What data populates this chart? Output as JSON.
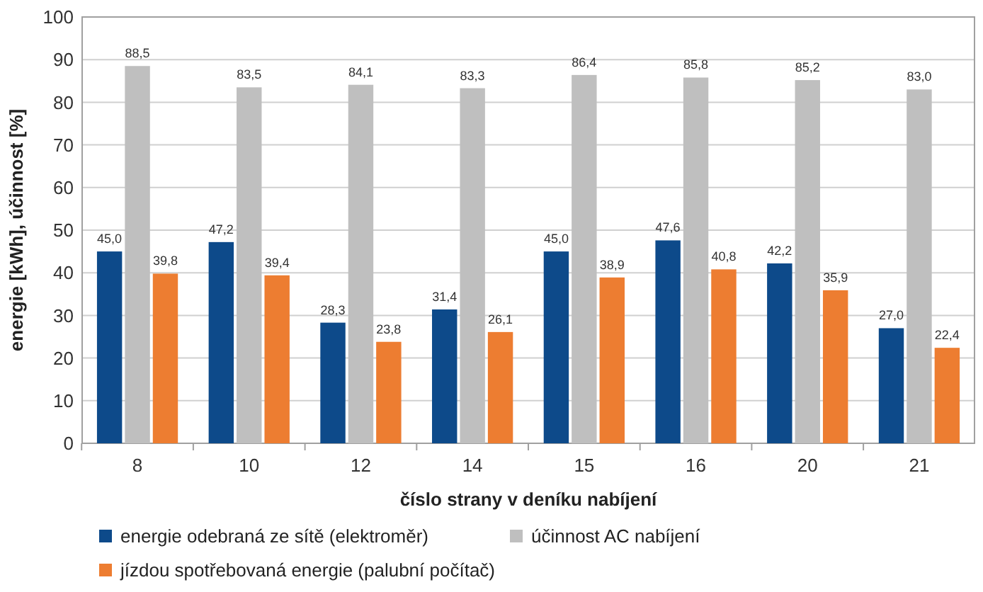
{
  "chart_data": {
    "type": "bar",
    "xlabel": "číslo strany v deníku nabíjení",
    "ylabel": "energie [kWh], účinnost [%]",
    "categories": [
      "8",
      "10",
      "12",
      "14",
      "15",
      "16",
      "20",
      "21"
    ],
    "series": [
      {
        "name": "energie odebraná ze sítě (elektroměr)",
        "color": "#0d4a8a",
        "values": [
          45.0,
          47.2,
          28.3,
          31.4,
          45.0,
          47.6,
          42.2,
          27.0
        ],
        "value_labels": [
          "45,0",
          "47,2",
          "28,3",
          "31,4",
          "45,0",
          "47,6",
          "42,2",
          "27,0"
        ]
      },
      {
        "name": "účinnost AC nabíjení",
        "color": "#bfbfbf",
        "values": [
          88.5,
          83.5,
          84.1,
          83.3,
          86.4,
          85.8,
          85.2,
          83.0
        ],
        "value_labels": [
          "88,5",
          "83,5",
          "84,1",
          "83,3",
          "86,4",
          "85,8",
          "85,2",
          "83,0"
        ]
      },
      {
        "name": "jízdou spotřebovaná energie (palubní počítač)",
        "color": "#ed7d31",
        "values": [
          39.8,
          39.4,
          23.8,
          26.1,
          38.9,
          40.8,
          35.9,
          22.4
        ],
        "value_labels": [
          "39,8",
          "39,4",
          "23,8",
          "26,1",
          "38,9",
          "40,8",
          "35,9",
          "22,4"
        ]
      }
    ],
    "ylim": [
      0,
      100
    ],
    "yticks": [
      0,
      10,
      20,
      30,
      40,
      50,
      60,
      70,
      80,
      90,
      100
    ],
    "grid": "y",
    "legend": "bottom"
  }
}
